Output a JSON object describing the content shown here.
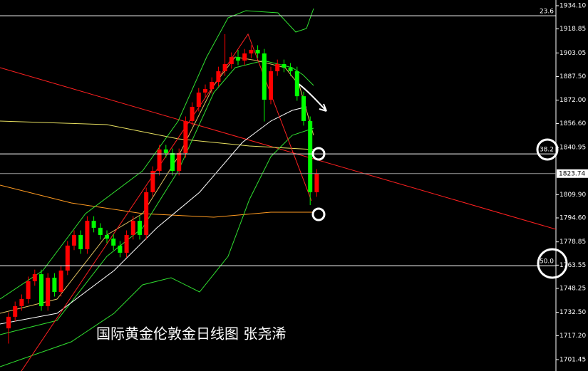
{
  "chart_data": {
    "type": "candlestick",
    "categories": [
      null,
      null,
      null,
      null,
      null,
      null,
      null,
      null,
      null,
      null,
      null,
      null,
      null,
      null,
      null,
      null,
      null,
      null,
      null,
      null,
      null,
      null,
      null,
      null,
      null,
      null,
      null,
      null,
      null,
      null,
      null,
      null,
      null,
      null,
      null,
      null,
      null,
      null,
      null,
      null,
      null,
      null,
      null,
      null,
      null,
      null,
      null,
      null
    ],
    "open": [
      1722.0,
      1729.6,
      1736.6,
      1741.3,
      1753.0,
      1757.6,
      1736.6,
      1755.3,
      1745.9,
      1760.0,
      1776.4,
      1783.4,
      1774.0,
      1792.7,
      1788.1,
      1783.4,
      1781.0,
      1776.4,
      1771.7,
      1783.4,
      1792.7,
      1783.4,
      1811.5,
      1825.5,
      1839.6,
      1837.2,
      1825.5,
      1837.2,
      1858.3,
      1867.6,
      1877.0,
      1879.3,
      1884.0,
      1891.0,
      1895.7,
      1900.4,
      1898.0,
      1902.7,
      1905.1,
      1902.7,
      1872.3,
      1891.0,
      1895.7,
      1893.4,
      1891.0,
      1874.6,
      1858.3,
      1811.5
    ],
    "high": [
      1732.6,
      1739.6,
      1744.3,
      1756.0,
      1760.6,
      1760.6,
      1758.3,
      1758.3,
      1763.0,
      1779.4,
      1786.4,
      1786.4,
      1795.7,
      1795.7,
      1791.1,
      1786.4,
      1784.0,
      1779.4,
      1786.4,
      1795.7,
      1795.7,
      1814.5,
      1828.5,
      1842.6,
      1842.6,
      1840.2,
      1840.2,
      1861.3,
      1870.6,
      1880.0,
      1882.3,
      1887.0,
      1894.0,
      1915.4,
      1903.4,
      1905.0,
      1905.7,
      1908.1,
      1908.1,
      1905.7,
      1894.0,
      1898.7,
      1898.7,
      1896.4,
      1894.0,
      1877.6,
      1861.3,
      1826.7
    ],
    "low": [
      1712.0,
      1726.6,
      1733.6,
      1738.3,
      1750.0,
      1733.6,
      1733.6,
      1742.9,
      1742.9,
      1757.0,
      1773.4,
      1771.0,
      1771.0,
      1785.1,
      1780.4,
      1778.0,
      1773.4,
      1768.7,
      1768.7,
      1780.4,
      1780.4,
      1780.4,
      1808.5,
      1822.5,
      1834.2,
      1822.5,
      1822.5,
      1834.2,
      1855.3,
      1864.6,
      1874.0,
      1876.3,
      1881.0,
      1888.0,
      1892.7,
      1895.0,
      1895.0,
      1899.7,
      1899.7,
      1858.0,
      1869.3,
      1888.0,
      1890.4,
      1888.0,
      1871.6,
      1855.3,
      1803.0,
      1808.5
    ],
    "close": [
      1729.6,
      1736.6,
      1741.3,
      1753.0,
      1757.6,
      1736.6,
      1755.3,
      1745.9,
      1760.0,
      1776.4,
      1783.4,
      1774.0,
      1792.7,
      1788.1,
      1783.4,
      1781.0,
      1776.4,
      1771.7,
      1783.4,
      1792.7,
      1783.4,
      1811.5,
      1825.5,
      1839.6,
      1837.2,
      1825.5,
      1837.2,
      1858.3,
      1867.6,
      1877.0,
      1879.3,
      1884.0,
      1891.0,
      1895.7,
      1900.4,
      1898.0,
      1902.7,
      1905.1,
      1902.7,
      1872.3,
      1891.0,
      1895.7,
      1893.4,
      1891.0,
      1874.6,
      1858.3,
      1811.5,
      1823.74
    ],
    "up_color": "#ff0000",
    "down_color": "#00ff00",
    "ylim": [
      1693.96,
      1937.85
    ],
    "yticks": [
      {
        "value": 1934.1,
        "label": "1934.10"
      },
      1918.85,
      1903.05,
      {
        "value": 1887.5,
        "label": "1887.50"
      },
      {
        "value": 1872.0,
        "label": "1872.00"
      },
      {
        "value": 1856.6,
        "label": "1856.60"
      },
      1840.95,
      {
        "value": 1809.9,
        "label": "1809.90"
      },
      {
        "value": 1794.6,
        "label": "1794.60"
      },
      1778.85,
      1763.55,
      1748.25,
      {
        "value": 1732.5,
        "label": "1732.50"
      },
      {
        "value": 1717.2,
        "label": "1717.20"
      },
      1701.45
    ],
    "levels": [
      {
        "name": "23.6",
        "value": 1927.5
      },
      {
        "name": "38.2",
        "value": 1836.7
      },
      {
        "name": "50.0",
        "value": 1763.2
      }
    ],
    "current_price": 1823.74,
    "annotation": "国际黄金伦敦金日线图 张尧浠"
  }
}
